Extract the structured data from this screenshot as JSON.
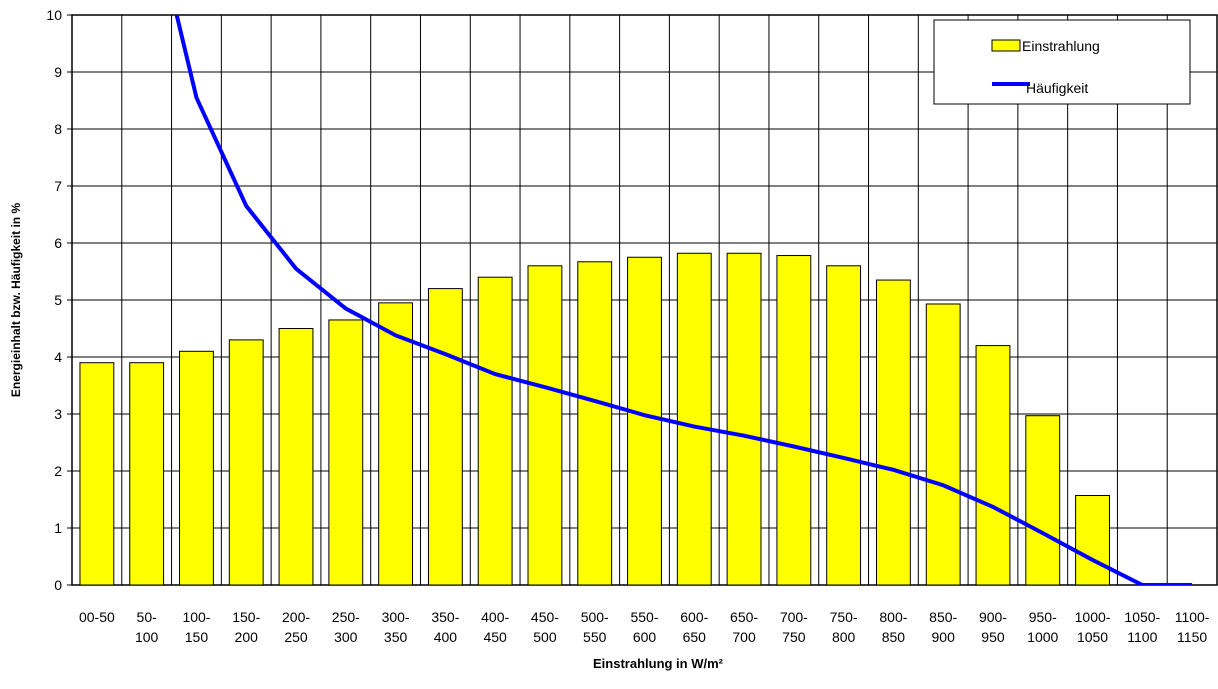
{
  "chart_data": {
    "type": "bar_line",
    "x_label": "Einstrahlung in W/m²",
    "y_label": "Energieinhalt bzw. Häufigkeit in %",
    "categories": [
      "00-50",
      "50-100",
      "100-150",
      "150-200",
      "200-250",
      "250-300",
      "300-350",
      "350-400",
      "400-450",
      "450-500",
      "500-550",
      "550-600",
      "600-650",
      "650-700",
      "700-750",
      "750-800",
      "800-850",
      "850-900",
      "900-950",
      "950-1000",
      "1000-1050",
      "1050-1100",
      "1100-1150"
    ],
    "series": [
      {
        "name": "Einstrahlung",
        "type": "bar",
        "color": "#ffff00",
        "values": [
          3.9,
          3.9,
          4.1,
          4.3,
          4.5,
          4.65,
          4.95,
          5.2,
          5.4,
          5.6,
          5.67,
          5.75,
          5.82,
          5.82,
          5.78,
          5.6,
          5.35,
          4.93,
          4.2,
          2.97,
          1.57,
          0,
          0
        ]
      },
      {
        "name": "Häufigkeit",
        "type": "line",
        "color": "#0000ff",
        "values": [
          null,
          12.2,
          8.55,
          6.65,
          5.55,
          4.85,
          4.38,
          4.05,
          3.7,
          3.47,
          3.23,
          2.98,
          2.78,
          2.62,
          2.43,
          2.23,
          2.02,
          1.75,
          1.37,
          0.91,
          0.44,
          0,
          0
        ]
      }
    ],
    "ylim": [
      0,
      10
    ],
    "yticks": [
      0,
      1,
      2,
      3,
      4,
      5,
      6,
      7,
      8,
      9,
      10
    ],
    "grid": true,
    "legend": "top-right"
  }
}
